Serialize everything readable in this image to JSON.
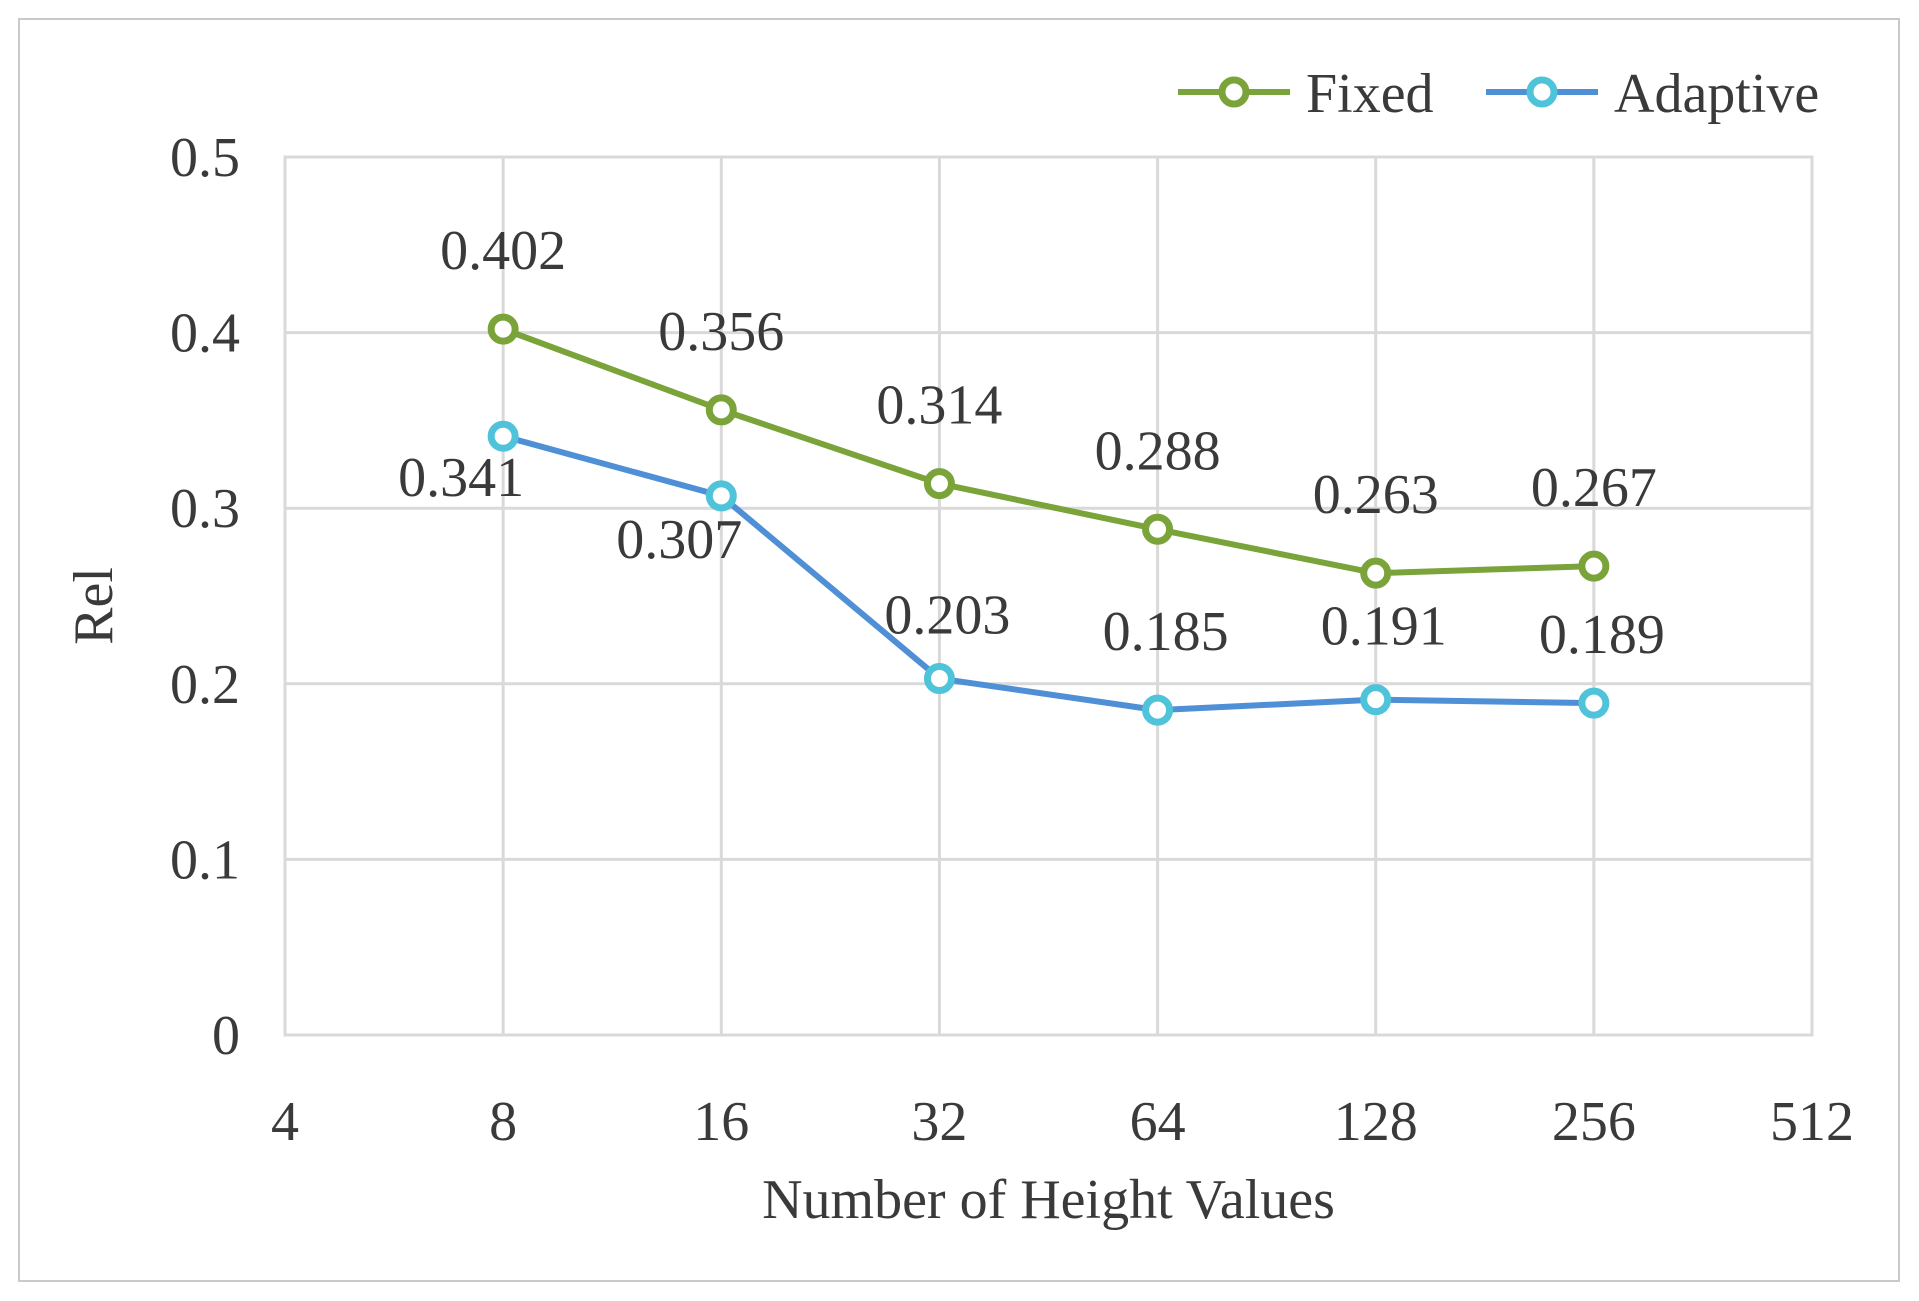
{
  "chart_data": {
    "type": "line",
    "x": [
      8,
      16,
      32,
      64,
      128,
      256
    ],
    "x_scale": "log2",
    "xlim": [
      4,
      512
    ],
    "x_ticks": [
      "4",
      "8",
      "16",
      "32",
      "64",
      "128",
      "256",
      "512"
    ],
    "ylim": [
      0,
      0.5
    ],
    "y_ticks": [
      "0",
      "0.1",
      "0.2",
      "0.3",
      "0.4",
      "0.5"
    ],
    "xlabel": "Number of Height Values",
    "ylabel": "Rel",
    "grid": true,
    "legend_position": "top-right",
    "series": [
      {
        "name": "Fixed",
        "color": "#7aa33a",
        "marker_fill": "#ffffff",
        "values": [
          0.402,
          0.356,
          0.314,
          0.288,
          0.263,
          0.267
        ],
        "labels": [
          "0.402",
          "0.356",
          "0.314",
          "0.288",
          "0.263",
          "0.267"
        ]
      },
      {
        "name": "Adaptive",
        "color": "#4f8fd6",
        "marker_color": "#4fc3d9",
        "marker_fill": "#ffffff",
        "values": [
          0.341,
          0.307,
          0.203,
          0.185,
          0.191,
          0.189
        ],
        "labels": [
          "0.341",
          "0.307",
          "0.203",
          "0.185",
          "0.191",
          "0.189"
        ]
      }
    ]
  }
}
